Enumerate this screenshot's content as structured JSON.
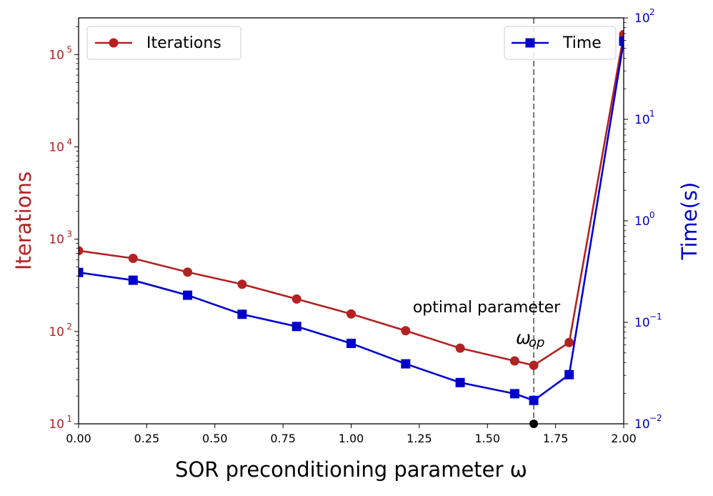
{
  "chart_data": {
    "type": "line",
    "xlabel": "SOR preconditioning parameter ω",
    "ylabel_left": "Iterations",
    "ylabel_right": "Time(s)",
    "xlim": [
      0.0,
      2.0
    ],
    "ylim_left": [
      10,
      250000
    ],
    "ylim_right": [
      0.01,
      100
    ],
    "y_scale": "log",
    "x_ticks": [
      "0.00",
      "0.25",
      "0.50",
      "0.75",
      "1.00",
      "1.25",
      "1.50",
      "1.75",
      "2.00"
    ],
    "x_tick_values": [
      0.0,
      0.25,
      0.5,
      0.75,
      1.0,
      1.25,
      1.5,
      1.75,
      2.0
    ],
    "y_left_ticks": [
      {
        "value": 10,
        "base": "10",
        "exp": "1"
      },
      {
        "value": 100,
        "base": "10",
        "exp": "2"
      },
      {
        "value": 1000,
        "base": "10",
        "exp": "3"
      },
      {
        "value": 10000,
        "base": "10",
        "exp": "4"
      },
      {
        "value": 100000,
        "base": "10",
        "exp": "5"
      }
    ],
    "y_right_ticks": [
      {
        "value": 0.01,
        "base": "10",
        "exp": "−2"
      },
      {
        "value": 0.1,
        "base": "10",
        "exp": "−1"
      },
      {
        "value": 1,
        "base": "10",
        "exp": "0"
      },
      {
        "value": 10,
        "base": "10",
        "exp": "1"
      },
      {
        "value": 100,
        "base": "10",
        "exp": "2"
      }
    ],
    "series": [
      {
        "name": "Iterations",
        "axis": "left",
        "color": "#b22222",
        "marker": "circle",
        "x": [
          0.0,
          0.2,
          0.4,
          0.6,
          0.8,
          1.0,
          1.2,
          1.4,
          1.6,
          1.67,
          1.8,
          2.0
        ],
        "values": [
          750,
          620,
          440,
          325,
          225,
          155,
          102,
          66,
          48,
          43,
          76,
          165000
        ]
      },
      {
        "name": "Time",
        "axis": "right",
        "color": "#0000cc",
        "marker": "square",
        "x": [
          0.0,
          0.2,
          0.4,
          0.6,
          0.8,
          1.0,
          1.2,
          1.4,
          1.6,
          1.67,
          1.8,
          2.0
        ],
        "values": [
          0.31,
          0.26,
          0.185,
          0.12,
          0.091,
          0.062,
          0.039,
          0.0255,
          0.0198,
          0.017,
          0.0305,
          59
        ]
      }
    ],
    "optimal_x": 1.67,
    "annotation_text": "optimal parameter",
    "annotation_symbol": "ω",
    "annotation_subscript": "op",
    "legend_left": "top-left",
    "legend_right": "top-right",
    "grid": false,
    "colors": {
      "left_axis": "#b22222",
      "right_axis": "#0000cc",
      "vline": "#808080"
    }
  }
}
